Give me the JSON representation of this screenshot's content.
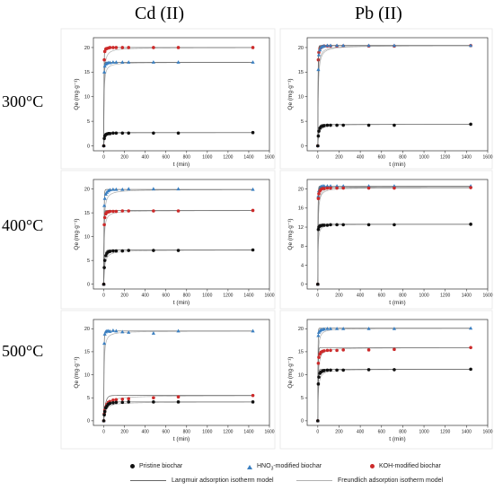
{
  "columns": [
    "Cd (II)",
    "Pb (II)"
  ],
  "rows": [
    "300°C",
    "400°C",
    "500°C"
  ],
  "colors": {
    "pristine": "#111111",
    "hno3": "#3a7fc1",
    "koh": "#cc2a2a",
    "langmuir": "#666666",
    "freundlich": "#b0b0b0"
  },
  "legend": {
    "pristine": "Pristine biochar",
    "hno3_pre": "HNO",
    "hno3_sub": "3",
    "hno3_post": "-modified biochar",
    "koh": "KOH-modified biochar",
    "langmuir": "Langmuir adsorption isotherm model",
    "freundlich": "Freundlich  adsorption isotherm model"
  },
  "axes": {
    "ylabel": "Qe (mg·g⁻¹)",
    "xlabel": "t (min)",
    "xticks": [
      0,
      200,
      400,
      600,
      800,
      1000,
      1200,
      1400,
      1600
    ],
    "xlim": [
      -100,
      1600
    ]
  },
  "chart_data": [
    {
      "type": "scatter",
      "metal": "Cd (II)",
      "temperature": "300°C",
      "xlim": [
        -100,
        1600
      ],
      "ylim": [
        -1,
        22
      ],
      "yticks": [
        0,
        5,
        10,
        15,
        20
      ],
      "x": [
        0,
        5,
        10,
        20,
        30,
        45,
        60,
        90,
        120,
        180,
        240,
        480,
        720,
        1440
      ],
      "series": [
        {
          "key": "koh",
          "values": [
            0,
            17.5,
            19.2,
            19.7,
            19.8,
            19.9,
            20.0,
            20.0,
            20.0,
            20.0,
            20.0,
            20.0,
            20.0,
            20.0
          ]
        },
        {
          "key": "hno3",
          "values": [
            0,
            15.0,
            16.2,
            16.6,
            16.8,
            16.9,
            16.9,
            17.0,
            17.0,
            17.0,
            17.0,
            17.0,
            17.0,
            17.0
          ]
        },
        {
          "key": "pristine",
          "values": [
            0,
            1.5,
            2.0,
            2.3,
            2.4,
            2.5,
            2.5,
            2.6,
            2.6,
            2.6,
            2.6,
            2.6,
            2.6,
            2.7
          ]
        }
      ]
    },
    {
      "type": "scatter",
      "metal": "Pb (II)",
      "temperature": "300°C",
      "xlim": [
        -100,
        1600
      ],
      "ylim": [
        -1,
        22
      ],
      "yticks": [
        0,
        5,
        10,
        15,
        20
      ],
      "x": [
        0,
        5,
        10,
        20,
        30,
        45,
        60,
        90,
        120,
        180,
        240,
        480,
        720,
        1440
      ],
      "series": [
        {
          "key": "koh",
          "values": [
            0,
            17.5,
            19.0,
            19.8,
            20.0,
            20.2,
            20.3,
            20.3,
            20.3,
            20.3,
            20.3,
            20.3,
            20.3,
            20.4
          ]
        },
        {
          "key": "hno3",
          "values": [
            0,
            15.5,
            18.5,
            19.5,
            20.0,
            20.2,
            20.3,
            20.4,
            20.4,
            20.4,
            20.4,
            20.4,
            20.4,
            20.4
          ]
        },
        {
          "key": "pristine",
          "values": [
            0,
            2.0,
            3.0,
            3.6,
            3.9,
            4.0,
            4.1,
            4.2,
            4.2,
            4.2,
            4.2,
            4.2,
            4.2,
            4.4
          ]
        }
      ]
    },
    {
      "type": "scatter",
      "metal": "Cd (II)",
      "temperature": "400°C",
      "xlim": [
        -100,
        1600
      ],
      "ylim": [
        -1,
        22
      ],
      "yticks": [
        0,
        5,
        10,
        15,
        20
      ],
      "x": [
        0,
        5,
        10,
        20,
        30,
        45,
        60,
        90,
        120,
        180,
        240,
        480,
        720,
        1440
      ],
      "series": [
        {
          "key": "hno3",
          "values": [
            0,
            16.5,
            18.0,
            18.9,
            19.3,
            19.6,
            19.8,
            19.9,
            19.9,
            19.9,
            20.0,
            20.0,
            20.0,
            19.9
          ]
        },
        {
          "key": "koh",
          "values": [
            0,
            12.5,
            14.0,
            14.8,
            15.1,
            15.2,
            15.3,
            15.3,
            15.3,
            15.4,
            15.4,
            15.4,
            15.4,
            15.5
          ]
        },
        {
          "key": "pristine",
          "values": [
            0,
            3.5,
            5.0,
            6.0,
            6.5,
            6.8,
            6.9,
            7.0,
            7.0,
            7.0,
            7.1,
            7.1,
            7.1,
            7.2
          ]
        }
      ]
    },
    {
      "type": "scatter",
      "metal": "Pb (II)",
      "temperature": "400°C",
      "xlim": [
        -100,
        1600
      ],
      "ylim": [
        -1,
        22
      ],
      "yticks": [
        0,
        4,
        8,
        12,
        16,
        20
      ],
      "x": [
        0,
        5,
        10,
        20,
        30,
        45,
        60,
        90,
        120,
        180,
        240,
        480,
        720,
        1440
      ],
      "series": [
        {
          "key": "hno3",
          "values": [
            0,
            18.5,
            19.6,
            20.2,
            20.5,
            20.6,
            20.6,
            20.6,
            20.6,
            20.6,
            20.6,
            20.6,
            20.6,
            20.6
          ]
        },
        {
          "key": "koh",
          "values": [
            0,
            18.0,
            19.0,
            19.6,
            19.9,
            20.1,
            20.1,
            20.2,
            20.2,
            20.2,
            20.2,
            20.2,
            20.2,
            20.3
          ]
        },
        {
          "key": "pristine",
          "values": [
            0,
            11.5,
            12.0,
            12.2,
            12.3,
            12.4,
            12.4,
            12.4,
            12.5,
            12.5,
            12.5,
            12.5,
            12.5,
            12.6
          ]
        }
      ]
    },
    {
      "type": "scatter",
      "metal": "Cd (II)",
      "temperature": "500°C",
      "xlim": [
        -100,
        1600
      ],
      "ylim": [
        -1,
        22
      ],
      "yticks": [
        0,
        5,
        10,
        15,
        20
      ],
      "x": [
        0,
        5,
        10,
        20,
        30,
        45,
        60,
        90,
        120,
        180,
        240,
        480,
        720,
        1440
      ],
      "series": [
        {
          "key": "hno3",
          "values": [
            0,
            16.8,
            18.8,
            19.3,
            19.5,
            19.5,
            19.4,
            19.6,
            19.5,
            19.3,
            19.2,
            19.0,
            19.5,
            19.5
          ]
        },
        {
          "key": "koh",
          "values": [
            0,
            1.5,
            2.3,
            3.0,
            3.6,
            4.0,
            4.2,
            4.5,
            4.6,
            4.7,
            4.8,
            5.0,
            5.2,
            5.5
          ]
        },
        {
          "key": "pristine",
          "values": [
            0,
            1.3,
            2.0,
            2.8,
            3.2,
            3.6,
            3.8,
            3.9,
            4.0,
            4.0,
            4.1,
            4.1,
            4.1,
            4.1
          ]
        }
      ]
    },
    {
      "type": "scatter",
      "metal": "Pb (II)",
      "temperature": "500°C",
      "xlim": [
        -100,
        1600
      ],
      "ylim": [
        -1,
        22
      ],
      "yticks": [
        0,
        5,
        10,
        15,
        20
      ],
      "x": [
        0,
        5,
        10,
        20,
        30,
        45,
        60,
        90,
        120,
        180,
        240,
        480,
        720,
        1440
      ],
      "series": [
        {
          "key": "hno3",
          "values": [
            0,
            18.5,
            19.2,
            19.5,
            19.7,
            19.8,
            19.9,
            20.0,
            20.0,
            20.0,
            20.0,
            20.0,
            20.0,
            20.1
          ]
        },
        {
          "key": "koh",
          "values": [
            0,
            12.5,
            13.8,
            14.5,
            14.9,
            15.1,
            15.2,
            15.3,
            15.3,
            15.3,
            15.4,
            15.4,
            15.5,
            15.9
          ]
        },
        {
          "key": "pristine",
          "values": [
            0,
            8.0,
            9.5,
            10.3,
            10.6,
            10.8,
            10.9,
            11.0,
            11.0,
            11.0,
            11.0,
            11.1,
            11.1,
            11.2
          ]
        }
      ]
    }
  ]
}
